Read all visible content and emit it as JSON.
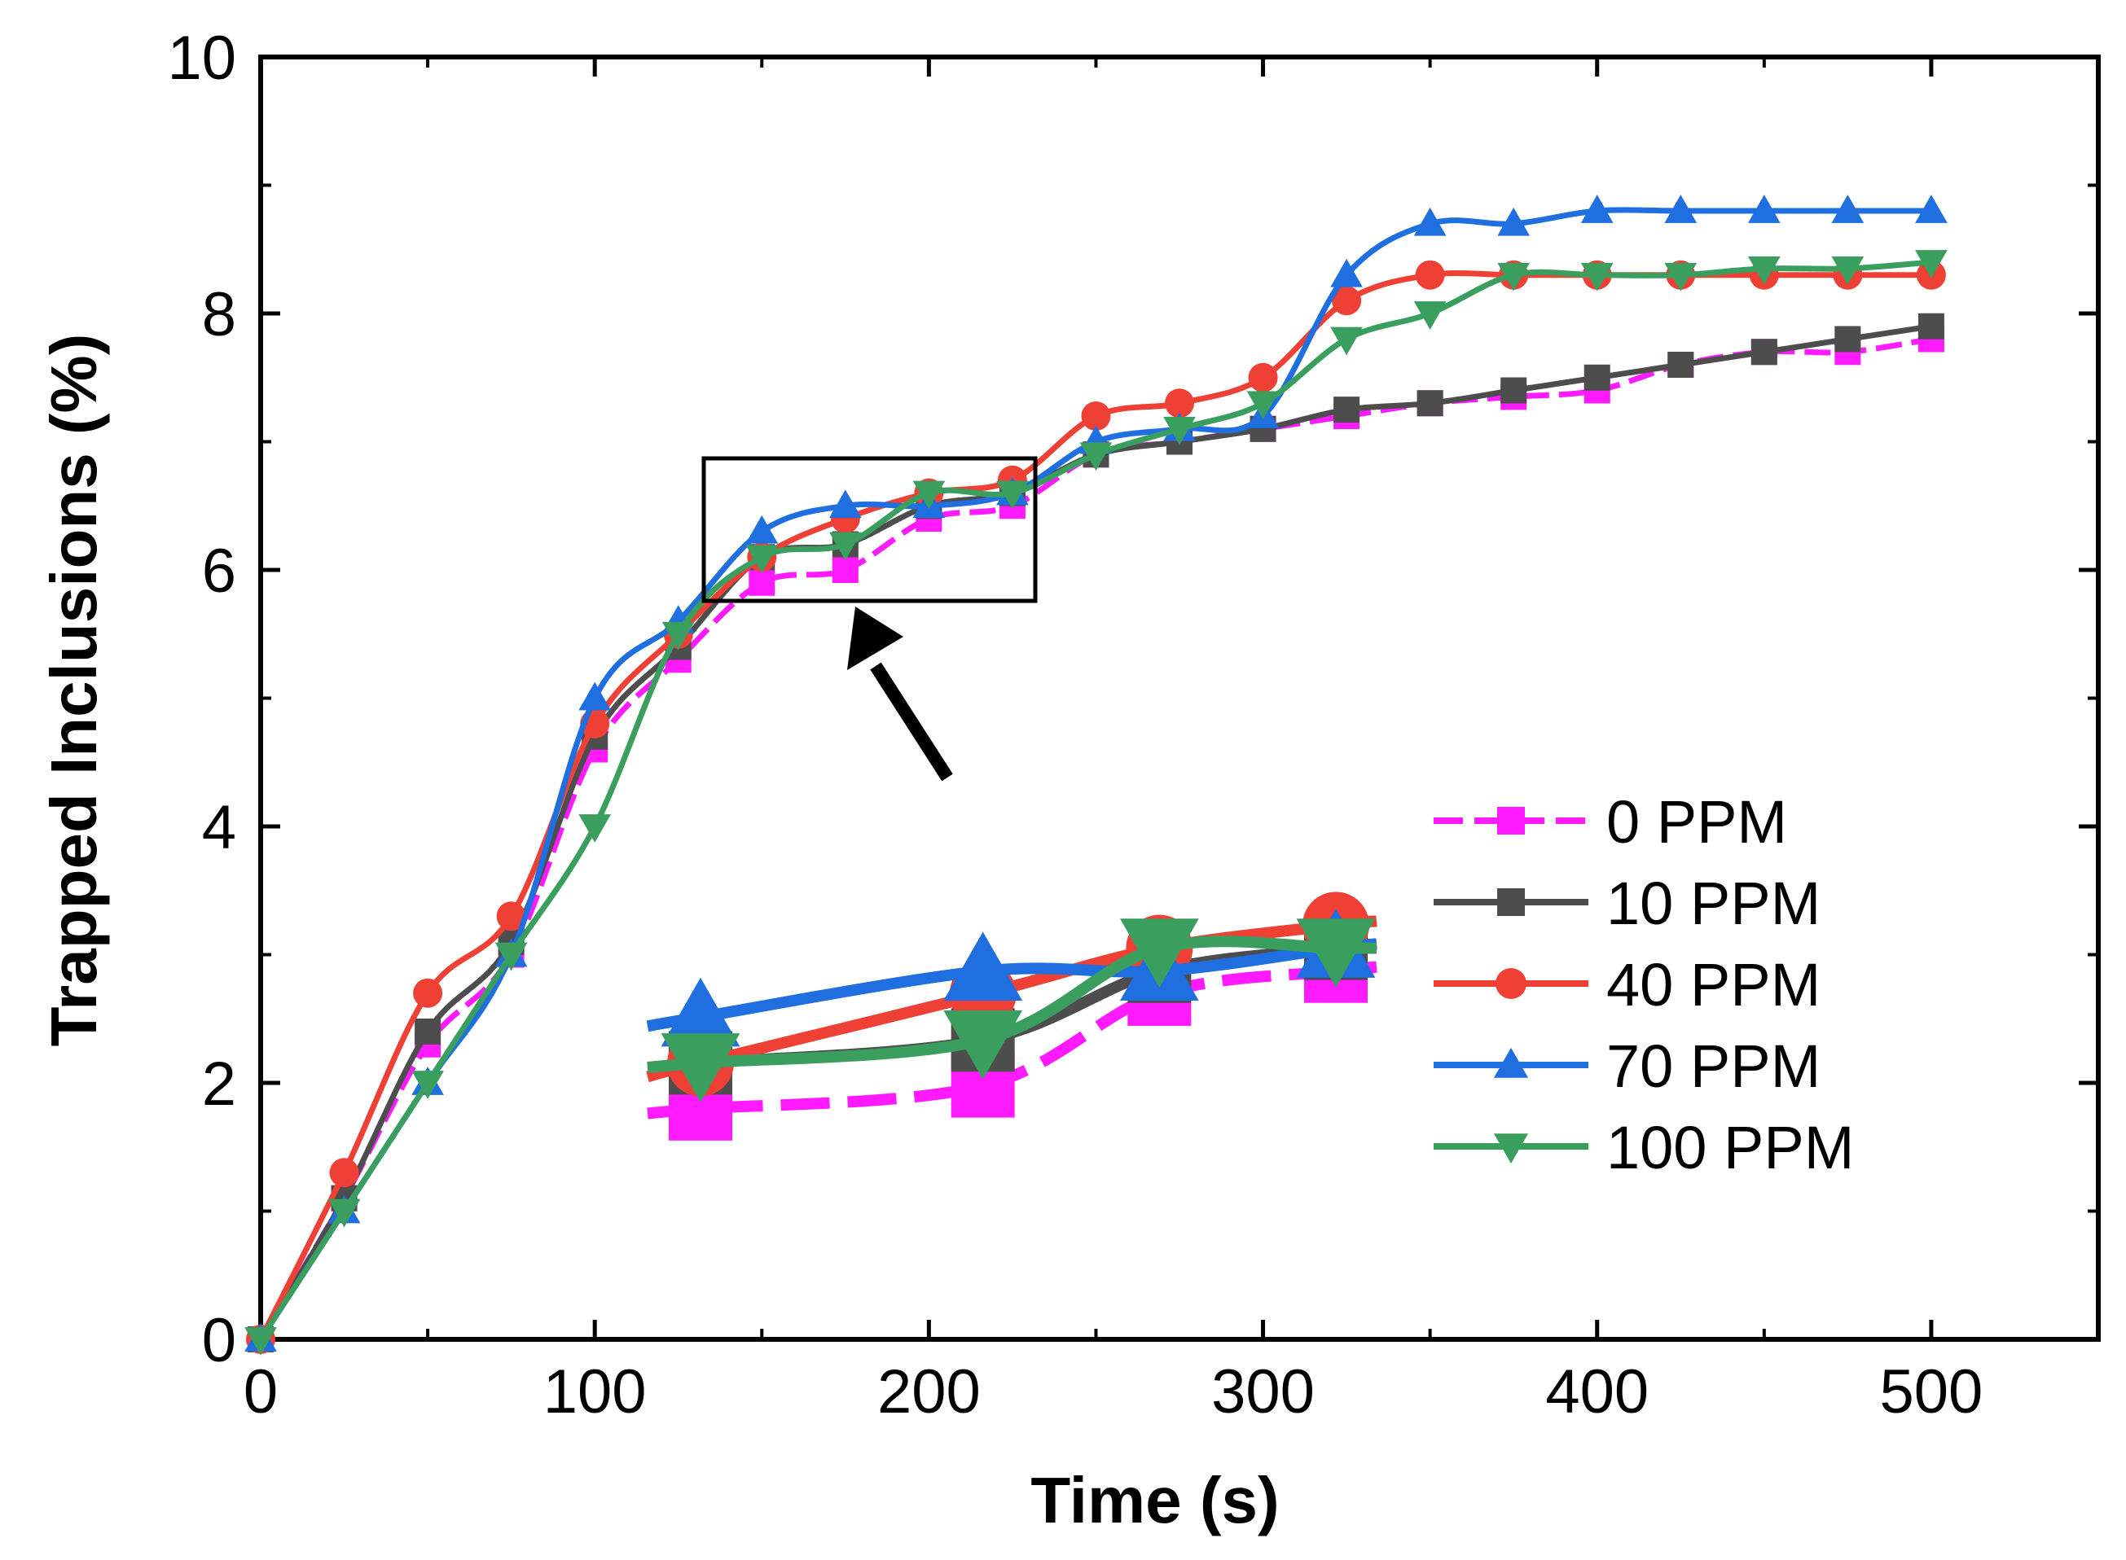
{
  "chart_data": {
    "type": "line",
    "xlabel": "Time (s)",
    "ylabel": "Trapped Inclusions (%)",
    "xlim": [
      0,
      550
    ],
    "ylim": [
      0,
      10
    ],
    "x_ticks": [
      0,
      100,
      200,
      300,
      400,
      500
    ],
    "y_ticks": [
      0,
      2,
      4,
      6,
      8,
      10
    ],
    "x_tick_labels": [
      "0",
      "100",
      "200",
      "300",
      "400",
      "500"
    ],
    "y_tick_labels": [
      "0",
      "2",
      "4",
      "6",
      "8",
      "10"
    ],
    "grid": false,
    "legend_position": "right",
    "x": [
      0,
      25,
      50,
      75,
      100,
      125,
      150,
      175,
      200,
      225,
      250,
      275,
      300,
      325,
      350,
      375,
      400,
      425,
      450,
      475,
      500
    ],
    "series": [
      {
        "name": "0 PPM",
        "color": "#ff1aff",
        "marker": "square",
        "dash": true,
        "values": [
          0,
          1.1,
          2.3,
          3.0,
          4.6,
          5.3,
          5.9,
          6.0,
          6.4,
          6.5,
          6.9,
          7.0,
          7.1,
          7.2,
          7.3,
          7.35,
          7.4,
          7.6,
          7.7,
          7.7,
          7.8
        ]
      },
      {
        "name": "10 PPM",
        "color": "#4d4d4d",
        "marker": "square",
        "dash": false,
        "values": [
          0,
          1.1,
          2.4,
          3.1,
          4.7,
          5.4,
          6.1,
          6.2,
          6.5,
          6.6,
          6.9,
          7.0,
          7.1,
          7.25,
          7.3,
          7.4,
          7.5,
          7.6,
          7.7,
          7.8,
          7.9
        ]
      },
      {
        "name": "40 PPM",
        "color": "#ee4035",
        "marker": "circle",
        "dash": false,
        "values": [
          0,
          1.3,
          2.7,
          3.3,
          4.8,
          5.5,
          6.1,
          6.4,
          6.6,
          6.7,
          7.2,
          7.3,
          7.5,
          8.1,
          8.3,
          8.3,
          8.3,
          8.3,
          8.3,
          8.3,
          8.3
        ]
      },
      {
        "name": "70 PPM",
        "color": "#1f6fe0",
        "marker": "triangle-up",
        "dash": false,
        "values": [
          0,
          1.0,
          2.0,
          3.0,
          5.0,
          5.6,
          6.3,
          6.5,
          6.5,
          6.6,
          7.0,
          7.1,
          7.2,
          8.3,
          8.7,
          8.7,
          8.8,
          8.8,
          8.8,
          8.8,
          8.8
        ]
      },
      {
        "name": "100 PPM",
        "color": "#3a9e5f",
        "marker": "triangle-down",
        "dash": false,
        "values": [
          0,
          1.0,
          2.0,
          3.0,
          4.0,
          5.5,
          6.1,
          6.2,
          6.6,
          6.6,
          6.9,
          7.1,
          7.3,
          7.8,
          8.0,
          8.3,
          8.3,
          8.3,
          8.35,
          8.35,
          8.4
        ]
      }
    ],
    "inset": {
      "x": [
        135,
        175,
        200,
        225
      ],
      "xlim": [
        135,
        225
      ],
      "ylim": [
        5.8,
        6.9
      ],
      "series": [
        {
          "values": [
            5.9,
            6.0,
            6.4,
            6.5
          ]
        },
        {
          "values": [
            6.1,
            6.2,
            6.5,
            6.6
          ]
        },
        {
          "values": [
            6.1,
            6.4,
            6.6,
            6.7
          ]
        },
        {
          "values": [
            6.3,
            6.5,
            6.5,
            6.6
          ]
        },
        {
          "values": [
            6.1,
            6.2,
            6.6,
            6.6
          ]
        }
      ]
    }
  }
}
